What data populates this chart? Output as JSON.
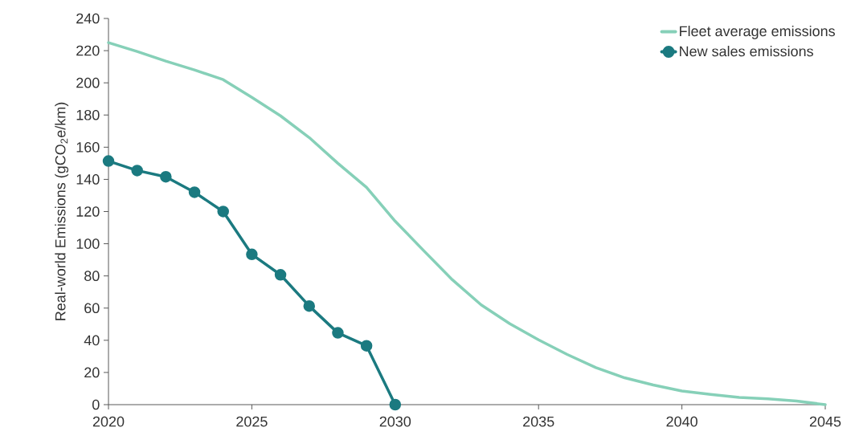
{
  "chart_data": {
    "type": "line",
    "ylabel": "Real-world Emissions (gCO$_{2}$e/km)",
    "x": [
      2020,
      2021,
      2022,
      2023,
      2024,
      2025,
      2026,
      2027,
      2028,
      2029,
      2030,
      2031,
      2032,
      2033,
      2034,
      2035,
      2036,
      2037,
      2038,
      2039,
      2040,
      2041,
      2042,
      2043,
      2044,
      2045
    ],
    "series": [
      {
        "name": "Fleet average emissions",
        "color": "#86d0b8",
        "marker": "none",
        "values": [
          225,
          219.5,
          213.5,
          208,
          202,
          191,
          179.5,
          166,
          150,
          135,
          114,
          95.6,
          77.5,
          62,
          50.3,
          40.3,
          31.2,
          23,
          16.7,
          12.2,
          8.5,
          6.4,
          4.5,
          3.6,
          2.2,
          0
        ]
      },
      {
        "name": "New sales emissions",
        "color": "#1b7a80",
        "marker": "circle",
        "values": [
          151.4,
          145.5,
          141.6,
          132,
          120,
          93.4,
          80.7,
          61.3,
          44.6,
          36.6,
          0,
          null,
          null,
          null,
          null,
          null,
          null,
          null,
          null,
          null,
          null,
          null,
          null,
          null,
          null,
          null
        ]
      }
    ],
    "xlim": [
      2020,
      2045
    ],
    "xticks": [
      2020,
      2025,
      2030,
      2035,
      2040,
      2045
    ],
    "ylim": [
      0,
      240
    ],
    "yticks": [
      0,
      20,
      40,
      60,
      80,
      100,
      120,
      140,
      160,
      180,
      200,
      220,
      240
    ],
    "grid": false,
    "legend": "top right"
  }
}
